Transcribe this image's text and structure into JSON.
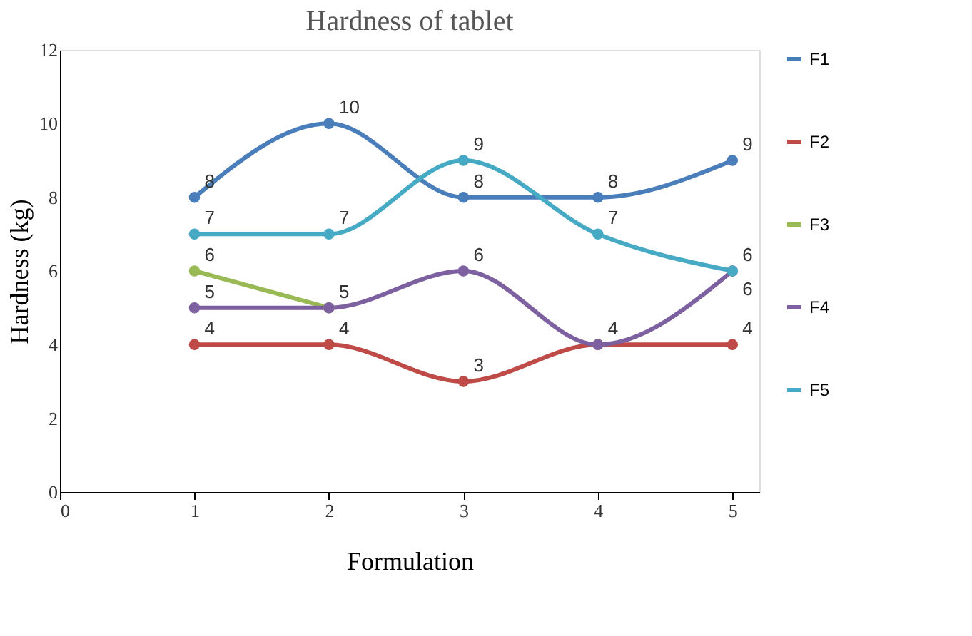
{
  "chart_data": {
    "type": "line",
    "title": "Hardness of  tablet",
    "xlabel": "Formulation",
    "ylabel": "Hardness (kg)",
    "x": [
      1,
      2,
      3,
      4,
      5
    ],
    "xlim": [
      0,
      5.2
    ],
    "xticks": [
      0,
      1,
      2,
      3,
      4,
      5
    ],
    "ylim": [
      0,
      12
    ],
    "yticks": [
      0,
      2,
      4,
      6,
      8,
      10,
      12
    ],
    "grid": false,
    "legend": "right",
    "marker": "circle",
    "line_style": "solid",
    "series": [
      {
        "name": "F1",
        "color": "#4a7ebb",
        "values": [
          8,
          10,
          8,
          8,
          9
        ],
        "value_labels": [
          "8",
          "10",
          "8",
          "8",
          "9"
        ]
      },
      {
        "name": "F2",
        "color": "#be4b48",
        "values": [
          4,
          4,
          3,
          4,
          4
        ],
        "value_labels": [
          "4",
          "4",
          "3",
          "4",
          "4"
        ]
      },
      {
        "name": "F3",
        "color": "#98b954",
        "values": [
          6,
          5,
          null,
          null,
          null
        ],
        "value_labels": [
          "6",
          "5",
          null,
          null,
          null
        ]
      },
      {
        "name": "F4",
        "color": "#7d60a0",
        "values": [
          5,
          5,
          6,
          4,
          6
        ],
        "value_labels": [
          "5",
          null,
          "6",
          null,
          "6"
        ]
      },
      {
        "name": "F5",
        "color": "#46aac5",
        "values": [
          7,
          7,
          9,
          7,
          6
        ],
        "value_labels": [
          "7",
          "7",
          "9",
          "7",
          "6"
        ]
      }
    ]
  }
}
